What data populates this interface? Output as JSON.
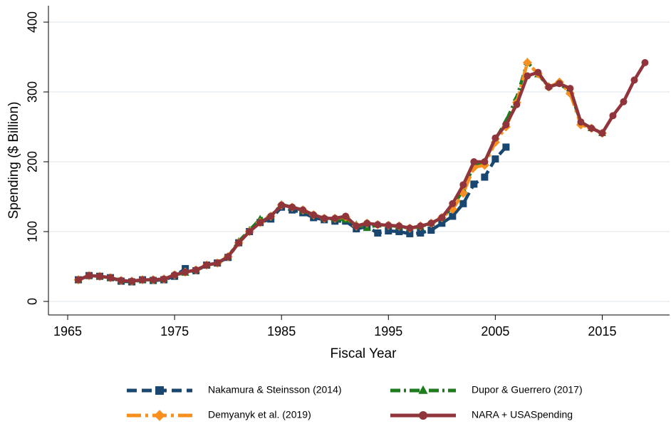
{
  "chart_data": {
    "type": "line",
    "xlabel": "Fiscal Year",
    "ylabel": "Spending ($ Billion)",
    "x": [
      1966,
      1967,
      1968,
      1969,
      1970,
      1971,
      1972,
      1973,
      1974,
      1975,
      1976,
      1977,
      1978,
      1979,
      1980,
      1981,
      1982,
      1983,
      1984,
      1985,
      1986,
      1987,
      1988,
      1989,
      1990,
      1991,
      1992,
      1993,
      1994,
      1995,
      1996,
      1997,
      1998,
      1999,
      2000,
      2001,
      2002,
      2003,
      2004,
      2005,
      2006,
      2007,
      2008,
      2009,
      2010,
      2011,
      2012,
      2013,
      2014,
      2015,
      2016,
      2017,
      2018,
      2019
    ],
    "xlim": [
      1963.2,
      2021.3
    ],
    "xticks": [
      1965,
      1975,
      1985,
      1995,
      2005,
      2015
    ],
    "ylim": [
      -19.4,
      423.5
    ],
    "yticks": [
      0,
      100,
      200,
      300,
      400
    ],
    "grid": true,
    "series": [
      {
        "name": "Nakamura & Steinsson (2014)",
        "color": "#1a476f",
        "marker": "square",
        "line_style": "dash",
        "values": [
          31,
          37,
          36,
          34,
          29,
          28,
          31,
          30,
          31,
          36,
          47,
          44,
          52,
          55,
          63,
          84,
          100,
          113,
          118,
          135,
          131,
          127,
          120,
          117,
          115,
          115,
          104,
          107,
          98,
          101,
          100,
          97,
          98,
          102,
          112,
          122,
          140,
          168,
          178,
          204,
          221,
          null,
          null,
          null,
          null,
          null,
          null,
          null,
          null,
          null,
          null,
          null,
          null,
          null
        ]
      },
      {
        "name": "Dupor & Guerrero (2017)",
        "color": "#1e7b1e",
        "marker": "triangle",
        "line_style": "dashdot",
        "values": [
          31,
          37,
          36,
          34,
          30,
          29,
          31,
          31,
          32,
          38,
          41,
          45,
          52,
          55,
          64,
          86,
          102,
          118,
          122,
          139,
          135,
          130,
          124,
          119,
          118,
          117,
          110,
          105,
          110,
          109,
          107,
          105,
          107,
          112,
          120,
          135,
          160,
          195,
          200,
          232,
          258,
          292,
          343,
          325,
          308,
          312,
          300,
          257,
          248,
          241,
          null,
          null,
          null,
          null
        ]
      },
      {
        "name": "Demyanyk et al. (2019)",
        "color": "#f7901e",
        "marker": "diamond",
        "line_style": "longdashdot",
        "values": [
          31,
          37,
          36,
          34,
          30,
          29,
          31,
          31,
          32,
          38,
          42,
          45,
          52,
          55,
          64,
          84,
          100,
          113,
          122,
          138,
          135,
          131,
          124,
          119,
          119,
          121,
          108,
          112,
          110,
          109,
          108,
          105,
          108,
          112,
          120,
          132,
          155,
          192,
          195,
          228,
          250,
          285,
          342,
          326,
          307,
          314,
          298,
          253,
          248,
          241,
          null,
          null,
          null,
          null
        ]
      },
      {
        "name": "NARA + USASpending",
        "color": "#90353b",
        "marker": "circle",
        "line_style": "solid",
        "values": [
          31,
          37,
          36,
          34,
          30,
          29,
          31,
          31,
          32,
          38,
          42,
          45,
          52,
          55,
          64,
          84,
          100,
          113,
          122,
          138,
          135,
          131,
          124,
          119,
          119,
          122,
          108,
          112,
          110,
          109,
          108,
          105,
          108,
          112,
          120,
          140,
          167,
          200,
          200,
          234,
          253,
          282,
          323,
          328,
          307,
          312,
          305,
          257,
          248,
          241,
          266,
          286,
          317,
          342
        ]
      }
    ]
  }
}
